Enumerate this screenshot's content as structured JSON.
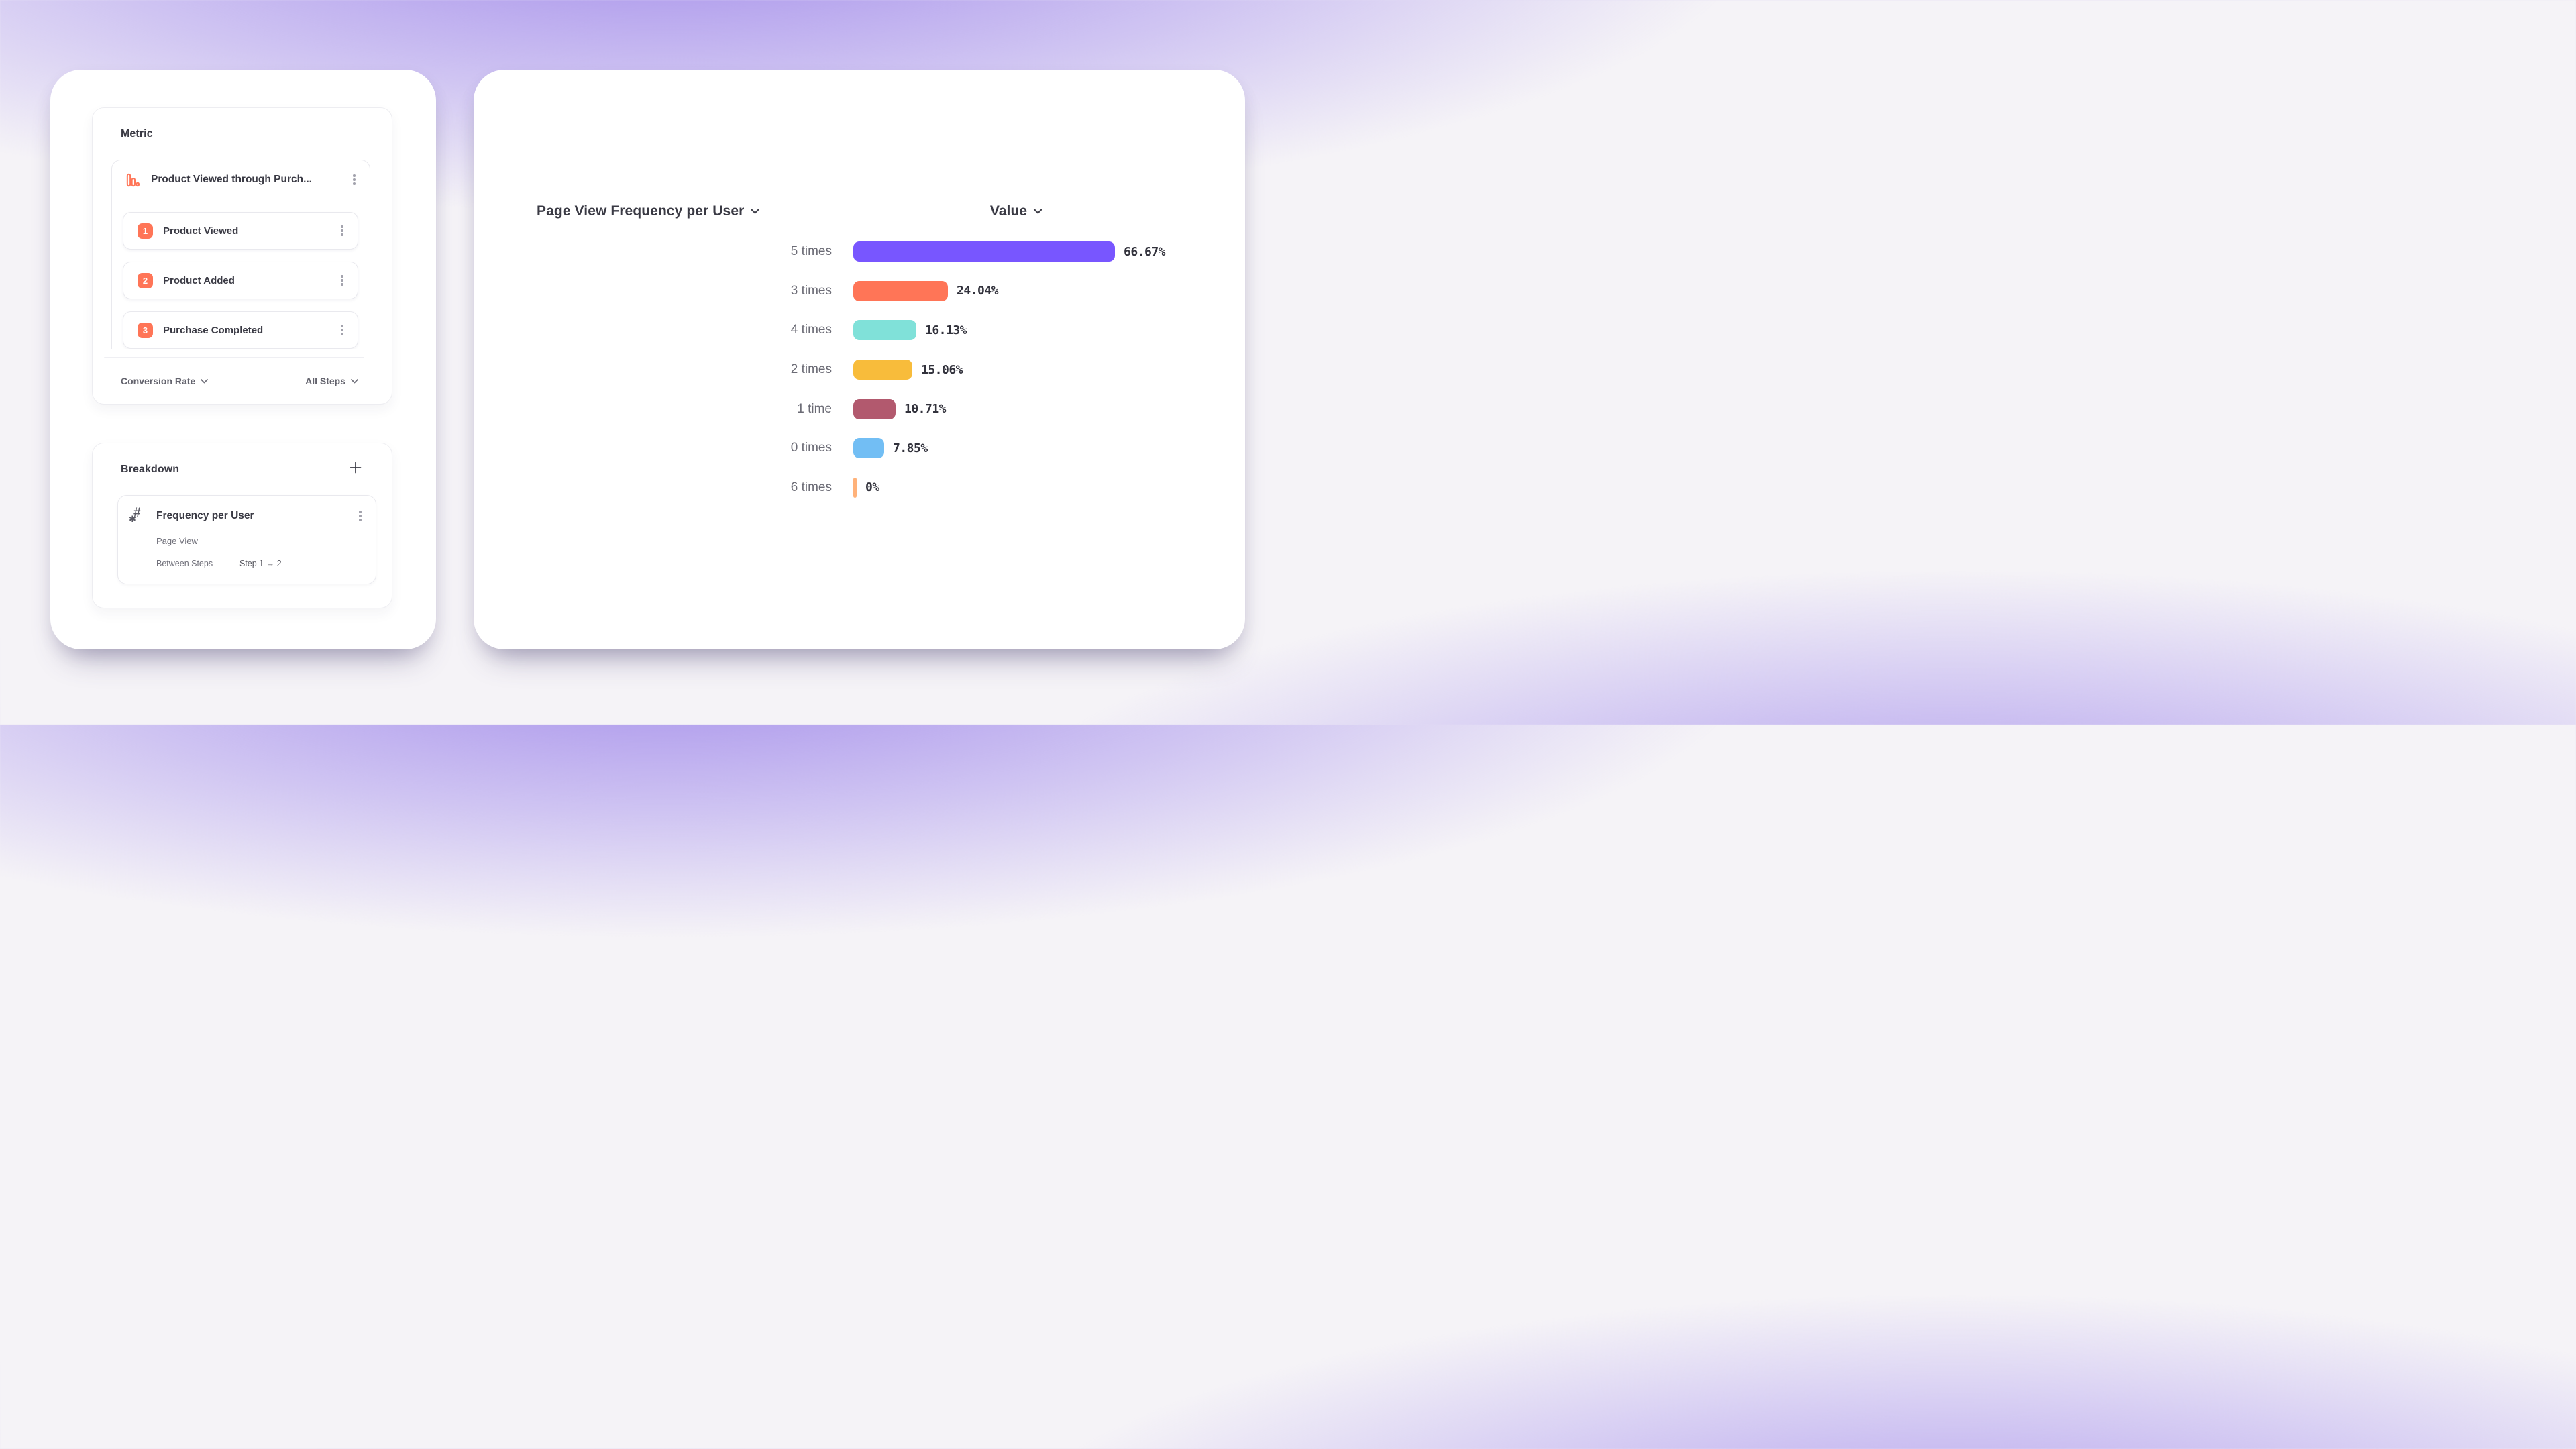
{
  "left_panel": {
    "metric": {
      "title": "Metric",
      "funnel": {
        "title": "Product Viewed through Purch...",
        "steps": [
          {
            "number": "1",
            "label": "Product Viewed"
          },
          {
            "number": "2",
            "label": "Product Added"
          },
          {
            "number": "3",
            "label": "Purchase Completed"
          }
        ]
      },
      "footer": {
        "measure": "Conversion Rate",
        "steps_filter": "All Steps"
      }
    },
    "breakdown": {
      "title": "Breakdown",
      "item": {
        "title": "Frequency per User",
        "event": "Page View",
        "between_steps_label": "Between Steps",
        "steps_range": "Step 1 → 2"
      }
    }
  },
  "chart_data": {
    "type": "bar",
    "orientation": "horizontal",
    "title": "Page View Frequency per User",
    "value_header": "Value",
    "categories": [
      "5 times",
      "3 times",
      "4 times",
      "2 times",
      "1 time",
      "0 times",
      "6 times"
    ],
    "values": [
      66.67,
      24.04,
      16.13,
      15.06,
      10.71,
      7.85,
      0
    ],
    "value_labels": [
      "66.67%",
      "24.04%",
      "16.13%",
      "15.06%",
      "10.71%",
      "7.85%",
      "0%"
    ],
    "bar_colors": [
      "#7856FF",
      "#FF7557",
      "#80E1D9",
      "#F8BC3B",
      "#B2596E",
      "#72BEF4",
      "#FFB27A"
    ],
    "axis_max": 66.67,
    "grid": false,
    "legend": false
  },
  "colors": {
    "accent_coral": "#FF7557",
    "card_bg": "#FFFFFF",
    "text_dark": "#3A3A44",
    "text_gray": "#6B6B75",
    "background_purple": "#A18AE8"
  }
}
